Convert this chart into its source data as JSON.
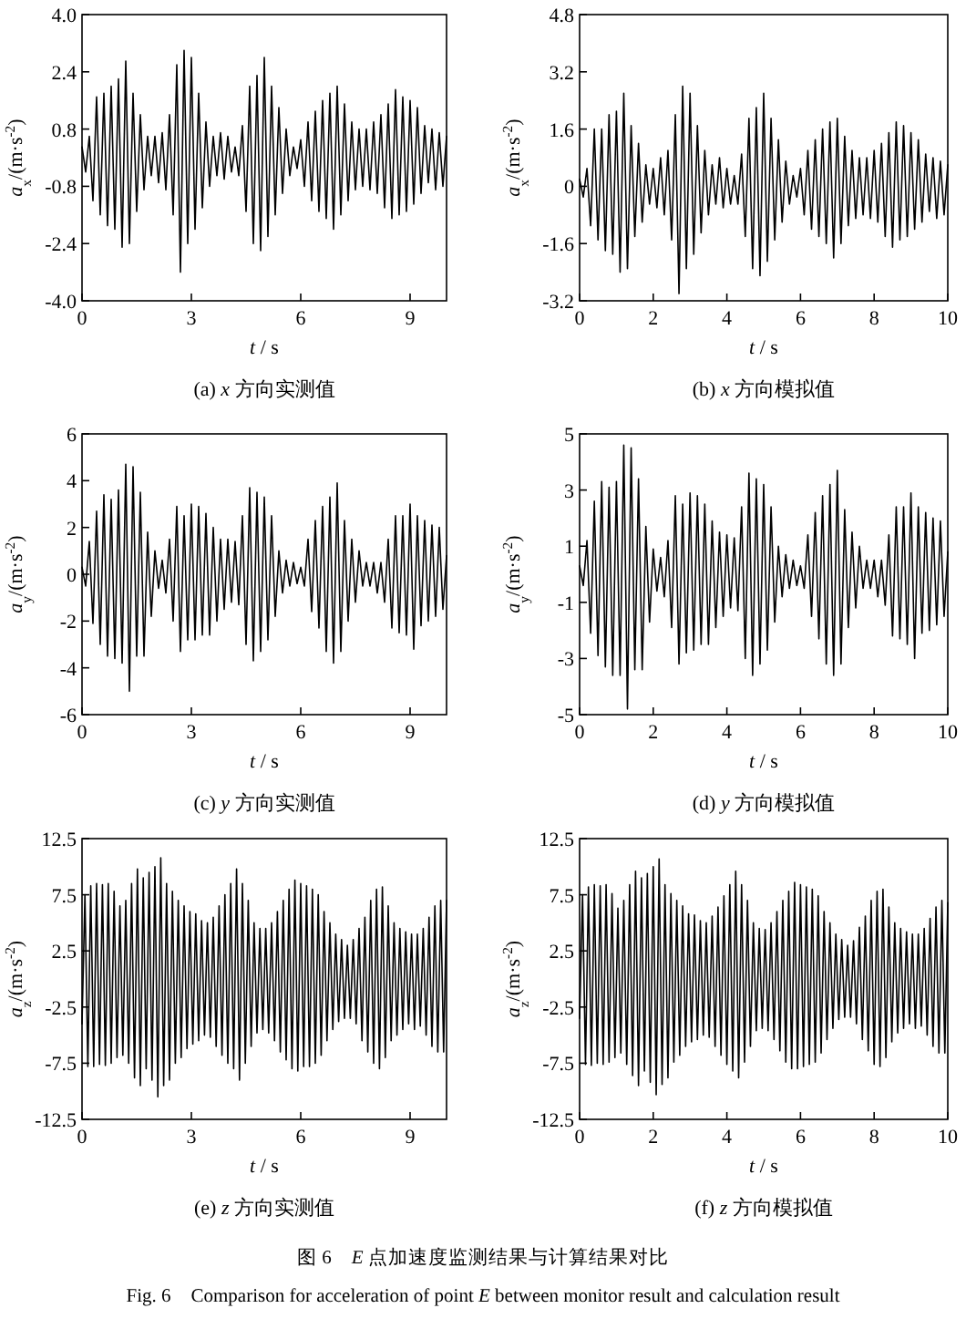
{
  "chart_data": [
    {
      "type": "line",
      "title": "(a) *x* 方向实测值",
      "xlabel": "*t* / s",
      "ylabel": "*a*$_{x}$/(m·s$^{-2}$)",
      "xlim": [
        0,
        10
      ],
      "xticks": [
        0,
        3,
        6,
        9
      ],
      "ylim": [
        -4,
        4
      ],
      "yticks": [
        {
          "value": -4,
          "label": "-4.0"
        },
        -2.4,
        -0.8,
        0.8,
        2.4,
        {
          "value": 4,
          "label": "4.0"
        }
      ],
      "x": [
        0,
        0.1,
        0.2,
        0.3,
        0.4,
        0.5,
        0.6,
        0.7,
        0.8,
        0.9,
        1,
        1.1,
        1.2,
        1.3,
        1.4,
        1.5,
        1.6,
        1.7,
        1.8,
        1.9,
        2,
        2.1,
        2.2,
        2.3,
        2.4,
        2.5,
        2.6,
        2.7,
        2.8,
        2.9,
        3,
        3.1,
        3.2,
        3.3,
        3.4,
        3.5,
        3.6,
        3.7,
        3.8,
        3.9,
        4,
        4.1,
        4.2,
        4.3,
        4.4,
        4.5,
        4.6,
        4.7,
        4.8,
        4.9,
        5,
        5.1,
        5.2,
        5.3,
        5.4,
        5.5,
        5.6,
        5.7,
        5.8,
        5.9,
        6,
        6.1,
        6.2,
        6.3,
        6.4,
        6.5,
        6.6,
        6.7,
        6.8,
        6.9,
        7,
        7.1,
        7.2,
        7.3,
        7.4,
        7.5,
        7.6,
        7.7,
        7.8,
        7.9,
        8,
        8.1,
        8.2,
        8.3,
        8.4,
        8.5,
        8.6,
        8.7,
        8.8,
        8.9,
        9,
        9.1,
        9.2,
        9.3,
        9.4,
        9.5,
        9.6,
        9.7,
        9.8,
        9.9,
        10
      ],
      "series": [
        {
          "color": "#000000",
          "values": [
            0.3,
            -0.4,
            0.6,
            -1.2,
            1.7,
            -1.6,
            1.8,
            -1.9,
            2.0,
            -2.0,
            2.2,
            -2.5,
            2.7,
            -2.4,
            1.8,
            -1.5,
            1.2,
            -0.9,
            0.6,
            -0.5,
            0.6,
            -0.7,
            0.7,
            -0.9,
            1.2,
            -1.6,
            2.6,
            -3.2,
            3.0,
            -2.4,
            2.8,
            -2.0,
            1.8,
            -1.4,
            1.0,
            -0.8,
            0.6,
            -0.5,
            0.7,
            -0.6,
            0.6,
            -0.4,
            0.3,
            -0.5,
            0.9,
            -1.5,
            2.0,
            -2.4,
            2.3,
            -2.6,
            2.8,
            -2.2,
            2.0,
            -1.6,
            1.4,
            -1.0,
            0.8,
            -0.5,
            0.3,
            -0.3,
            0.5,
            -0.8,
            1.0,
            -1.2,
            1.3,
            -1.5,
            1.6,
            -1.7,
            1.8,
            -2.0,
            2.0,
            -1.6,
            1.5,
            -1.2,
            1.0,
            -0.9,
            0.8,
            -0.8,
            0.8,
            -0.9,
            1.0,
            -1.0,
            1.2,
            -1.4,
            1.5,
            -1.7,
            1.9,
            -1.6,
            1.7,
            -1.5,
            1.6,
            -1.3,
            1.4,
            -1.0,
            0.9,
            -0.7,
            0.8,
            -0.9,
            0.7,
            -0.8,
            0.6
          ]
        }
      ]
    },
    {
      "type": "line",
      "title": "(b) *x* 方向模拟值",
      "xlabel": "*t* / s",
      "ylabel": "*a*$_{x}$/(m·s$^{-2}$)",
      "xlim": [
        0,
        10
      ],
      "xticks": [
        0,
        2,
        4,
        6,
        8,
        10
      ],
      "ylim": [
        -3.2,
        4.8
      ],
      "yticks": [
        -3.2,
        -1.6,
        0,
        1.6,
        3.2,
        4.8
      ],
      "x": [
        0,
        0.1,
        0.2,
        0.3,
        0.4,
        0.5,
        0.6,
        0.7,
        0.8,
        0.9,
        1,
        1.1,
        1.2,
        1.3,
        1.4,
        1.5,
        1.6,
        1.7,
        1.8,
        1.9,
        2,
        2.1,
        2.2,
        2.3,
        2.4,
        2.5,
        2.6,
        2.7,
        2.8,
        2.9,
        3,
        3.1,
        3.2,
        3.3,
        3.4,
        3.5,
        3.6,
        3.7,
        3.8,
        3.9,
        4,
        4.1,
        4.2,
        4.3,
        4.4,
        4.5,
        4.6,
        4.7,
        4.8,
        4.9,
        5,
        5.1,
        5.2,
        5.3,
        5.4,
        5.5,
        5.6,
        5.7,
        5.8,
        5.9,
        6,
        6.1,
        6.2,
        6.3,
        6.4,
        6.5,
        6.6,
        6.7,
        6.8,
        6.9,
        7,
        7.1,
        7.2,
        7.3,
        7.4,
        7.5,
        7.6,
        7.7,
        7.8,
        7.9,
        8,
        8.1,
        8.2,
        8.3,
        8.4,
        8.5,
        8.6,
        8.7,
        8.8,
        8.9,
        9,
        9.1,
        9.2,
        9.3,
        9.4,
        9.5,
        9.6,
        9.7,
        9.8,
        9.9,
        10
      ],
      "series": [
        {
          "color": "#000000",
          "values": [
            0.2,
            -0.3,
            0.5,
            -1.1,
            1.6,
            -1.5,
            1.6,
            -1.8,
            2.0,
            -1.9,
            2.1,
            -2.4,
            2.6,
            -2.3,
            1.7,
            -1.4,
            1.2,
            -1.0,
            0.6,
            -0.5,
            0.5,
            -0.6,
            0.8,
            -0.8,
            1.0,
            -1.5,
            2.0,
            -3.0,
            2.8,
            -2.3,
            2.6,
            -1.9,
            1.7,
            -1.3,
            1.0,
            -0.8,
            0.6,
            -0.5,
            0.8,
            -0.6,
            0.5,
            -0.5,
            0.3,
            -0.5,
            0.9,
            -1.4,
            1.9,
            -2.3,
            2.2,
            -2.5,
            2.6,
            -2.1,
            1.9,
            -1.5,
            1.3,
            -1.0,
            0.7,
            -0.5,
            0.3,
            -0.3,
            0.5,
            -0.8,
            1.0,
            -1.2,
            1.3,
            -1.4,
            1.6,
            -1.6,
            1.8,
            -2.0,
            1.9,
            -1.6,
            1.4,
            -1.1,
            1.0,
            -0.9,
            0.8,
            -0.8,
            0.8,
            -0.9,
            1.0,
            -1.0,
            1.2,
            -1.4,
            1.5,
            -1.7,
            1.8,
            -1.5,
            1.7,
            -1.4,
            1.5,
            -1.2,
            1.3,
            -1.0,
            0.9,
            -0.7,
            0.8,
            -0.9,
            0.7,
            -0.8,
            0.6
          ]
        }
      ]
    },
    {
      "type": "line",
      "title": "(c) *y* 方向实测值",
      "xlabel": "*t* / s",
      "ylabel": "*a*$_{y}$/(m·s$^{-2}$)",
      "xlim": [
        0,
        10
      ],
      "xticks": [
        0,
        3,
        6,
        9
      ],
      "ylim": [
        -6,
        6
      ],
      "yticks": [
        -6,
        -4,
        -2,
        0,
        2,
        4,
        6
      ],
      "x": [
        0,
        0.1,
        0.2,
        0.3,
        0.4,
        0.5,
        0.6,
        0.7,
        0.8,
        0.9,
        1,
        1.1,
        1.2,
        1.3,
        1.4,
        1.5,
        1.6,
        1.7,
        1.8,
        1.9,
        2,
        2.1,
        2.2,
        2.3,
        2.4,
        2.5,
        2.6,
        2.7,
        2.8,
        2.9,
        3,
        3.1,
        3.2,
        3.3,
        3.4,
        3.5,
        3.6,
        3.7,
        3.8,
        3.9,
        4,
        4.1,
        4.2,
        4.3,
        4.4,
        4.5,
        4.6,
        4.7,
        4.8,
        4.9,
        5,
        5.1,
        5.2,
        5.3,
        5.4,
        5.5,
        5.6,
        5.7,
        5.8,
        5.9,
        6,
        6.1,
        6.2,
        6.3,
        6.4,
        6.5,
        6.6,
        6.7,
        6.8,
        6.9,
        7,
        7.1,
        7.2,
        7.3,
        7.4,
        7.5,
        7.6,
        7.7,
        7.8,
        7.9,
        8,
        8.1,
        8.2,
        8.3,
        8.4,
        8.5,
        8.6,
        8.7,
        8.8,
        8.9,
        9,
        9.1,
        9.2,
        9.3,
        9.4,
        9.5,
        9.6,
        9.7,
        9.8,
        9.9,
        10
      ],
      "series": [
        {
          "color": "#000000",
          "values": [
            0.3,
            -0.5,
            1.4,
            -2.1,
            2.7,
            -3.0,
            3.4,
            -3.5,
            3.2,
            -3.6,
            3.6,
            -3.8,
            4.7,
            -5.0,
            4.6,
            -3.5,
            3.5,
            -3.5,
            1.8,
            -1.8,
            1.0,
            -0.6,
            0.6,
            -0.8,
            1.5,
            -2.0,
            2.9,
            -3.3,
            2.5,
            -2.8,
            3.0,
            -2.8,
            2.9,
            -2.6,
            2.6,
            -2.6,
            2.0,
            -2.0,
            1.5,
            -1.5,
            1.5,
            -1.2,
            1.4,
            -1.3,
            2.5,
            -3.0,
            3.7,
            -3.7,
            3.5,
            -3.3,
            3.3,
            -2.8,
            2.5,
            -1.8,
            1.0,
            -0.8,
            0.6,
            -0.5,
            0.5,
            -0.4,
            0.3,
            -0.5,
            1.5,
            -1.6,
            2.3,
            -2.3,
            2.9,
            -3.3,
            3.3,
            -3.8,
            3.9,
            -3.3,
            2.3,
            -2.0,
            1.5,
            -1.2,
            1.0,
            -0.5,
            0.5,
            -0.5,
            0.5,
            -0.8,
            0.5,
            -1.2,
            1.5,
            -2.3,
            2.5,
            -2.5,
            2.5,
            -2.6,
            3.0,
            -3.2,
            2.5,
            -2.2,
            2.3,
            -2.0,
            2.1,
            -1.8,
            2.0,
            -1.5,
            0.8
          ]
        }
      ]
    },
    {
      "type": "line",
      "title": "(d) *y* 方向模拟值",
      "xlabel": "*t* / s",
      "ylabel": "*a*$_{y}$/(m·s$^{-2}$)",
      "xlim": [
        0,
        10
      ],
      "xticks": [
        0,
        2,
        4,
        6,
        8,
        10
      ],
      "ylim": [
        -5,
        5
      ],
      "yticks": [
        -5,
        -3,
        -1,
        1,
        3,
        5
      ],
      "x": [
        0,
        0.1,
        0.2,
        0.3,
        0.4,
        0.5,
        0.6,
        0.7,
        0.8,
        0.9,
        1,
        1.1,
        1.2,
        1.3,
        1.4,
        1.5,
        1.6,
        1.7,
        1.8,
        1.9,
        2,
        2.1,
        2.2,
        2.3,
        2.4,
        2.5,
        2.6,
        2.7,
        2.8,
        2.9,
        3,
        3.1,
        3.2,
        3.3,
        3.4,
        3.5,
        3.6,
        3.7,
        3.8,
        3.9,
        4,
        4.1,
        4.2,
        4.3,
        4.4,
        4.5,
        4.6,
        4.7,
        4.8,
        4.9,
        5,
        5.1,
        5.2,
        5.3,
        5.4,
        5.5,
        5.6,
        5.7,
        5.8,
        5.9,
        6,
        6.1,
        6.2,
        6.3,
        6.4,
        6.5,
        6.6,
        6.7,
        6.8,
        6.9,
        7,
        7.1,
        7.2,
        7.3,
        7.4,
        7.5,
        7.6,
        7.7,
        7.8,
        7.9,
        8,
        8.1,
        8.2,
        8.3,
        8.4,
        8.5,
        8.6,
        8.7,
        8.8,
        8.9,
        9,
        9.1,
        9.2,
        9.3,
        9.4,
        9.5,
        9.6,
        9.7,
        9.8,
        9.9,
        10
      ],
      "series": [
        {
          "color": "#000000",
          "values": [
            0.3,
            -0.4,
            1.2,
            -2.1,
            2.6,
            -2.9,
            3.3,
            -3.3,
            3.1,
            -3.6,
            3.3,
            -3.6,
            4.6,
            -4.8,
            4.5,
            -3.4,
            3.4,
            -3.4,
            1.7,
            -1.7,
            0.9,
            -0.6,
            0.6,
            -0.8,
            1.2,
            -1.9,
            2.8,
            -3.2,
            2.5,
            -2.8,
            2.9,
            -2.7,
            2.8,
            -2.5,
            2.5,
            -2.5,
            1.9,
            -1.9,
            1.5,
            -1.5,
            1.4,
            -1.2,
            1.3,
            -1.3,
            2.4,
            -3.0,
            3.6,
            -3.6,
            3.4,
            -3.2,
            3.2,
            -2.7,
            2.4,
            -1.7,
            1.0,
            -0.8,
            0.7,
            -0.5,
            0.5,
            -0.4,
            0.3,
            -0.5,
            1.4,
            -1.5,
            2.2,
            -2.3,
            2.8,
            -3.2,
            3.2,
            -3.6,
            3.7,
            -3.2,
            2.3,
            -1.9,
            1.5,
            -1.2,
            1.0,
            -0.5,
            0.5,
            -0.5,
            0.5,
            -0.8,
            0.5,
            -1.1,
            1.4,
            -2.2,
            2.4,
            -2.3,
            2.4,
            -2.5,
            2.9,
            -3.0,
            2.4,
            -2.1,
            2.2,
            -2.0,
            2.0,
            -1.8,
            1.9,
            -1.5,
            0.8
          ]
        }
      ]
    },
    {
      "type": "line",
      "title": "(e) *z* 方向实测值",
      "xlabel": "*t* / s",
      "ylabel": "*a*$_{z}$/(m·s$^{-2}$)",
      "xlim": [
        0,
        10
      ],
      "xticks": [
        0,
        3,
        6,
        9
      ],
      "ylim": [
        -12.5,
        12.5
      ],
      "yticks": [
        -12.5,
        -7.5,
        -2.5,
        2.5,
        7.5,
        12.5
      ],
      "x": [
        0,
        0.08,
        0.16,
        0.24,
        0.32,
        0.4,
        0.48,
        0.56,
        0.64,
        0.72,
        0.8,
        0.88,
        0.96,
        1.04,
        1.12,
        1.2,
        1.28,
        1.36,
        1.44,
        1.52,
        1.6,
        1.68,
        1.76,
        1.84,
        1.92,
        2,
        2.08,
        2.16,
        2.24,
        2.32,
        2.4,
        2.48,
        2.56,
        2.64,
        2.72,
        2.8,
        2.88,
        2.96,
        3.04,
        3.12,
        3.2,
        3.28,
        3.36,
        3.44,
        3.52,
        3.6,
        3.68,
        3.76,
        3.84,
        3.92,
        4,
        4.08,
        4.16,
        4.24,
        4.32,
        4.4,
        4.48,
        4.56,
        4.64,
        4.72,
        4.8,
        4.88,
        4.96,
        5.04,
        5.12,
        5.2,
        5.28,
        5.36,
        5.44,
        5.52,
        5.6,
        5.68,
        5.76,
        5.84,
        5.92,
        6,
        6.08,
        6.16,
        6.24,
        6.32,
        6.4,
        6.48,
        6.56,
        6.64,
        6.72,
        6.8,
        6.88,
        6.96,
        7.04,
        7.12,
        7.2,
        7.28,
        7.36,
        7.44,
        7.52,
        7.6,
        7.68,
        7.76,
        7.84,
        7.92,
        8,
        8.08,
        8.16,
        8.24,
        8.32,
        8.4,
        8.48,
        8.56,
        8.64,
        8.72,
        8.8,
        8.88,
        8.96,
        9.04,
        9.12,
        9.2,
        9.28,
        9.36,
        9.44,
        9.52,
        9.6,
        9.68,
        9.76,
        9.84,
        9.92,
        10
      ],
      "series": [
        {
          "color": "#000000",
          "values": [
            -4,
            7.5,
            -7.8,
            8.3,
            -7.8,
            8.5,
            -7.6,
            8.4,
            -7.7,
            8.5,
            -7.5,
            7.8,
            -7.0,
            6.5,
            -6.8,
            7.0,
            -7.5,
            8.5,
            -8.8,
            9.8,
            -9.5,
            9.0,
            -8.0,
            9.5,
            -9.0,
            10.0,
            -10.5,
            10.8,
            -9.5,
            8.5,
            -9.0,
            7.8,
            -7.5,
            7.0,
            -7.0,
            6.5,
            -6.2,
            6.0,
            -5.8,
            5.8,
            -5.5,
            5.2,
            -5.0,
            5.0,
            -5.2,
            5.5,
            -6.0,
            6.5,
            -6.8,
            7.5,
            -7.5,
            8.5,
            -8.0,
            9.8,
            -9.0,
            8.5,
            -7.5,
            7.0,
            -6.0,
            5.0,
            -4.8,
            4.5,
            -4.5,
            4.5,
            -4.8,
            5.0,
            -5.5,
            6.0,
            -6.5,
            7.0,
            -7.2,
            8.0,
            -8.0,
            8.8,
            -8.2,
            8.5,
            -7.8,
            8.3,
            -7.8,
            8.0,
            -7.5,
            7.5,
            -6.8,
            6.0,
            -5.5,
            5.0,
            -4.5,
            4.0,
            -3.8,
            3.5,
            -3.5,
            3.0,
            -3.5,
            3.5,
            -4.0,
            4.5,
            -5.5,
            5.5,
            -6.5,
            7.0,
            -7.5,
            8.0,
            -8.0,
            8.2,
            -7.0,
            6.5,
            -5.5,
            5.0,
            -5.0,
            4.5,
            -4.5,
            4.2,
            -4.0,
            4.0,
            -4.5,
            4.0,
            -4.2,
            4.5,
            -5.0,
            5.5,
            -6.0,
            6.5,
            -6.5,
            7.0,
            -6.5,
            7.0
          ]
        }
      ]
    },
    {
      "type": "line",
      "title": "(f) *z* 方向模拟值",
      "xlabel": "*t* / s",
      "ylabel": "*a*$_{z}$/(m·s$^{-2}$)",
      "xlim": [
        0,
        10
      ],
      "xticks": [
        0,
        2,
        4,
        6,
        8,
        10
      ],
      "ylim": [
        -12.5,
        12.5
      ],
      "yticks": [
        -12.5,
        -7.5,
        -2.5,
        2.5,
        7.5,
        12.5
      ],
      "x": [
        0,
        0.08,
        0.16,
        0.24,
        0.32,
        0.4,
        0.48,
        0.56,
        0.64,
        0.72,
        0.8,
        0.88,
        0.96,
        1.04,
        1.12,
        1.2,
        1.28,
        1.36,
        1.44,
        1.52,
        1.6,
        1.68,
        1.76,
        1.84,
        1.92,
        2,
        2.08,
        2.16,
        2.24,
        2.32,
        2.4,
        2.48,
        2.56,
        2.64,
        2.72,
        2.8,
        2.88,
        2.96,
        3.04,
        3.12,
        3.2,
        3.28,
        3.36,
        3.44,
        3.52,
        3.6,
        3.68,
        3.76,
        3.84,
        3.92,
        4,
        4.08,
        4.16,
        4.24,
        4.32,
        4.4,
        4.48,
        4.56,
        4.64,
        4.72,
        4.8,
        4.88,
        4.96,
        5.04,
        5.12,
        5.2,
        5.28,
        5.36,
        5.44,
        5.52,
        5.6,
        5.68,
        5.76,
        5.84,
        5.92,
        6,
        6.08,
        6.16,
        6.24,
        6.32,
        6.4,
        6.48,
        6.56,
        6.64,
        6.72,
        6.8,
        6.88,
        6.96,
        7.04,
        7.12,
        7.2,
        7.28,
        7.36,
        7.44,
        7.52,
        7.6,
        7.68,
        7.76,
        7.84,
        7.92,
        8,
        8.08,
        8.16,
        8.24,
        8.32,
        8.4,
        8.48,
        8.56,
        8.64,
        8.72,
        8.8,
        8.88,
        8.96,
        9.04,
        9.12,
        9.2,
        9.28,
        9.36,
        9.44,
        9.52,
        9.6,
        9.68,
        9.76,
        9.84,
        9.92,
        10
      ],
      "series": [
        {
          "color": "#000000",
          "values": [
            -3.5,
            7.5,
            -7.6,
            8.2,
            -7.7,
            8.4,
            -7.5,
            8.3,
            -7.6,
            8.4,
            -7.4,
            7.6,
            -7.0,
            6.3,
            -6.6,
            7.0,
            -7.6,
            8.4,
            -8.6,
            9.6,
            -9.5,
            9.0,
            -8.2,
            9.4,
            -9.2,
            10.0,
            -10.3,
            10.7,
            -9.4,
            8.4,
            -8.8,
            7.6,
            -7.4,
            7.0,
            -6.8,
            6.5,
            -6.0,
            5.8,
            -5.6,
            5.7,
            -5.4,
            5.2,
            -5.0,
            5.0,
            -5.2,
            5.6,
            -6.0,
            6.4,
            -6.8,
            7.4,
            -7.6,
            8.4,
            -8.2,
            9.6,
            -8.8,
            8.4,
            -7.4,
            7.0,
            -6.0,
            5.0,
            -4.6,
            4.5,
            -4.4,
            4.4,
            -4.6,
            5.0,
            -5.4,
            6.0,
            -6.4,
            7.0,
            -7.4,
            7.8,
            -8.0,
            8.6,
            -8.0,
            8.4,
            -7.8,
            8.2,
            -7.6,
            8.0,
            -7.4,
            7.4,
            -6.6,
            6.0,
            -5.4,
            5.0,
            -4.4,
            4.0,
            -3.6,
            3.5,
            -3.4,
            3.0,
            -3.4,
            3.4,
            -4.0,
            4.6,
            -5.4,
            5.6,
            -6.4,
            7.0,
            -7.6,
            7.8,
            -7.8,
            8.0,
            -7.0,
            6.4,
            -5.6,
            5.0,
            -4.8,
            4.5,
            -4.4,
            4.2,
            -4.0,
            4.0,
            -4.4,
            4.0,
            -4.2,
            4.5,
            -5.0,
            5.4,
            -6.0,
            6.4,
            -6.6,
            7.0,
            -6.6,
            6.8
          ]
        }
      ]
    },
    {
      "type": "other",
      "annotations": [
        "图 6　*E* 点加速度监测结果与计算结果对比",
        "Fig. 6　Comparison for acceleration of point *E* between monitor result and calculation result"
      ]
    }
  ]
}
